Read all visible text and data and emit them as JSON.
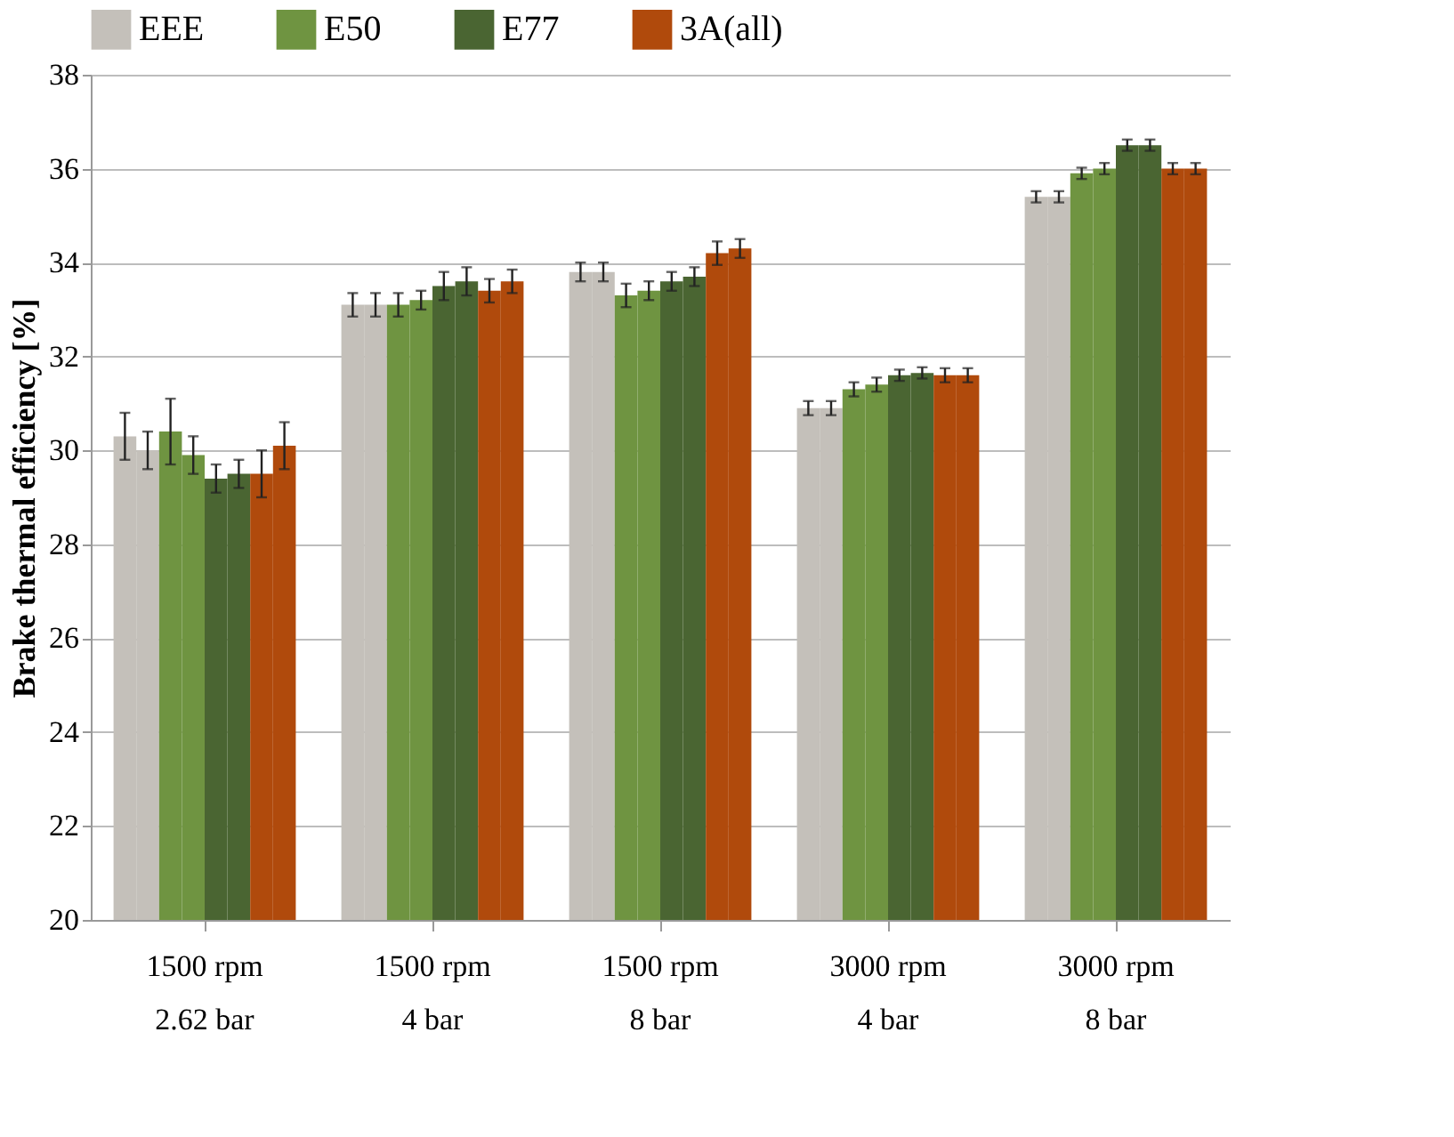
{
  "chart_data": {
    "type": "bar",
    "ylabel": "Brake thermal efficiency  [%]",
    "categories": [
      "1500 rpm\n2.62 bar",
      "1500 rpm\n4 bar",
      "1500 rpm\n8 bar",
      "3000 rpm\n4 bar",
      "3000 rpm\n8 bar"
    ],
    "series": [
      {
        "name": "EEE",
        "color": "#c4c0ba",
        "values": [
          30.3,
          33.1,
          33.8,
          30.9,
          35.4
        ],
        "errors": [
          0.5,
          0.25,
          0.2,
          0.15,
          0.12
        ]
      },
      {
        "color": "#c4c0ba",
        "values": [
          30.0,
          33.1,
          33.8,
          30.9,
          35.4
        ],
        "errors": [
          0.4,
          0.25,
          0.2,
          0.15,
          0.12
        ]
      },
      {
        "name": "E50",
        "color": "#6f9441",
        "values": [
          30.4,
          33.1,
          33.3,
          31.3,
          35.9
        ],
        "errors": [
          0.7,
          0.25,
          0.25,
          0.15,
          0.12
        ]
      },
      {
        "color": "#6f9441",
        "values": [
          29.9,
          33.2,
          33.4,
          31.4,
          36.0
        ],
        "errors": [
          0.4,
          0.2,
          0.2,
          0.15,
          0.12
        ]
      },
      {
        "name": "E77",
        "color": "#4a6532",
        "values": [
          29.4,
          33.5,
          33.6,
          31.6,
          36.5
        ],
        "errors": [
          0.3,
          0.3,
          0.2,
          0.12,
          0.12
        ]
      },
      {
        "color": "#4a6532",
        "values": [
          29.5,
          33.6,
          33.7,
          31.65,
          36.5
        ],
        "errors": [
          0.3,
          0.3,
          0.2,
          0.12,
          0.12
        ]
      },
      {
        "name": "3A(all)",
        "color": "#b04a0c",
        "values": [
          29.5,
          33.4,
          34.2,
          31.6,
          36.0
        ],
        "errors": [
          0.5,
          0.25,
          0.25,
          0.15,
          0.12
        ]
      },
      {
        "color": "#b04a0c",
        "values": [
          30.1,
          33.6,
          34.3,
          31.6,
          36.0
        ],
        "errors": [
          0.5,
          0.25,
          0.2,
          0.15,
          0.12
        ]
      }
    ],
    "ylim": [
      20,
      38
    ],
    "yticks": [
      20,
      22,
      24,
      26,
      28,
      30,
      32,
      34,
      36,
      38
    ],
    "grid": "y",
    "legend": "top"
  }
}
